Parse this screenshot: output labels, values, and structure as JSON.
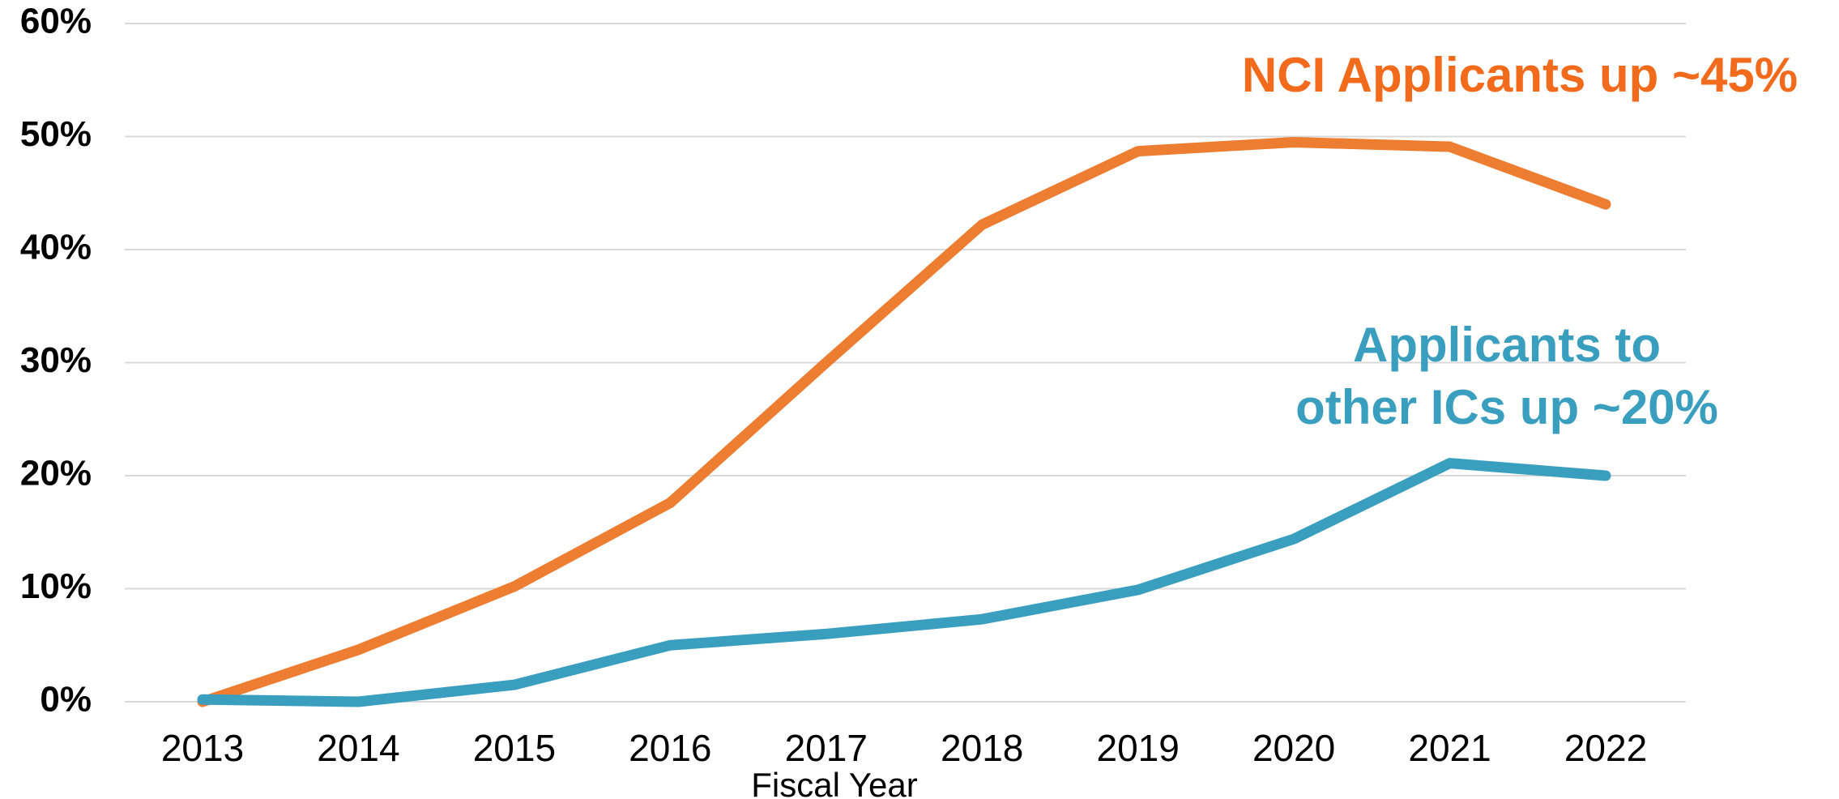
{
  "chart_data": {
    "type": "line",
    "x_label": "Fiscal Year",
    "categories": [
      "2013",
      "2014",
      "2015",
      "2016",
      "2017",
      "2018",
      "2019",
      "2020",
      "2021",
      "2022"
    ],
    "series": [
      {
        "color": "#ed7d31",
        "values": [
          0,
          4.6,
          10.2,
          17.6,
          30,
          42.2,
          48.7,
          49.5,
          49.1,
          44.0
        ]
      },
      {
        "color": "#3a9fbf",
        "values": [
          0.2,
          0,
          1.5,
          5.0,
          6.0,
          7.3,
          9.9,
          14.4,
          21.1,
          20.0
        ]
      }
    ],
    "annotations": [
      {
        "lines": [
          "NCI Applicants up ~45%"
        ],
        "color": "#f26a1b"
      },
      {
        "lines": [
          "Applicants to",
          "other ICs up ~20%"
        ],
        "color": "#3a9fbf"
      }
    ],
    "ylim": [
      0,
      60
    ],
    "yticks": [
      {
        "value": 0,
        "label": "0%"
      },
      {
        "value": 10,
        "label": "10%"
      },
      {
        "value": 20,
        "label": "20%"
      },
      {
        "value": 30,
        "label": "30%"
      },
      {
        "value": 40,
        "label": "40%"
      },
      {
        "value": 50,
        "label": "50%"
      },
      {
        "value": 60,
        "label": "60%"
      }
    ],
    "grid": true
  }
}
